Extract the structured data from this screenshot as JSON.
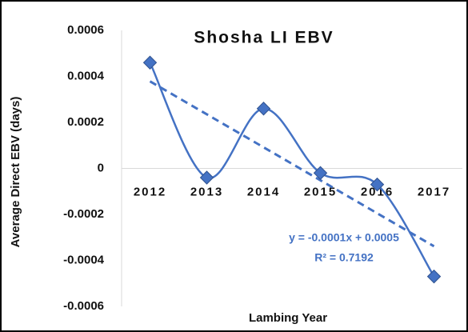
{
  "chart_data": {
    "type": "line",
    "title": "Shosha LI EBV",
    "x_label": "Lambing Year",
    "y_label": "Average Direct EBV (days)",
    "categories": [
      "2012",
      "2013",
      "2014",
      "2015",
      "2016",
      "2017"
    ],
    "values": [
      0.00046,
      -4e-05,
      0.00026,
      -2e-05,
      -7e-05,
      -0.00047
    ],
    "color": "#4472c4",
    "smooth": true,
    "marker": "diamond",
    "trendline": {
      "type": "linear",
      "color": "#4472c4",
      "dashed": true
    },
    "annotations": [
      "y = -0.0001x + 0.0005",
      "R² = 0.7192"
    ],
    "ylim": [
      -0.0006,
      0.0006
    ],
    "yticks": [
      -0.0006,
      -0.0004,
      -0.0002,
      0,
      0.0002,
      0.0004,
      0.0006
    ],
    "grid": false
  }
}
